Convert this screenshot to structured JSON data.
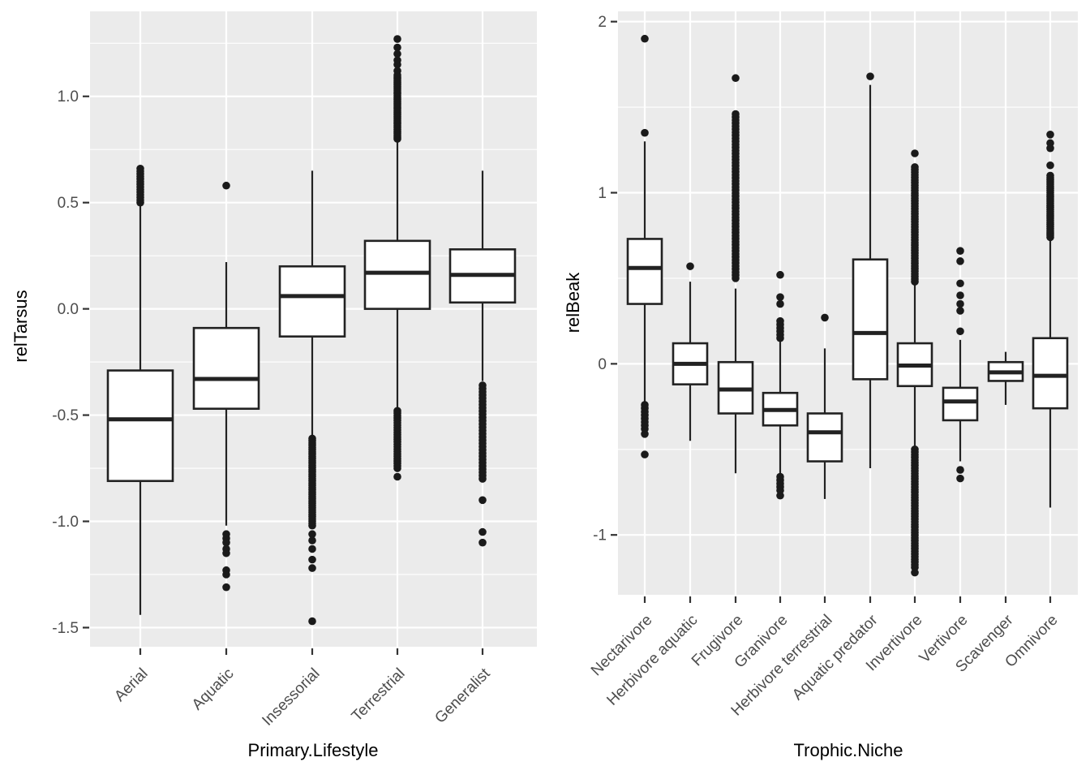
{
  "figure": {
    "background": "#FFFFFF",
    "panel_background": "#EBEBEB",
    "grid_color": "#FFFFFF",
    "box_fill": "#FFFFFF",
    "box_stroke": "#222222",
    "outlier_color": "#1A1A1A",
    "tick_label_color": "#4D4D4D",
    "tick_mark_color": "#333333",
    "axis_title_color": "#000000"
  },
  "chart_data": [
    {
      "type": "boxplot",
      "title": "",
      "xlabel": "Primary.Lifestyle",
      "ylabel": "relTarsus",
      "ylim": [
        -1.59,
        1.4
      ],
      "yticks": [
        -1.5,
        -1.0,
        -0.5,
        0.0,
        0.5,
        1.0
      ],
      "ytick_labels": [
        "-1.5",
        "-1.0",
        "-0.5",
        "0.0",
        "0.5",
        "1.0"
      ],
      "grid": "major-and-minor",
      "legend": "none",
      "categories": [
        "Aerial",
        "Aquatic",
        "Insessorial",
        "Terrestrial",
        "Generalist"
      ],
      "boxes": [
        {
          "category": "Aerial",
          "whisker_low": -1.44,
          "q1": -0.81,
          "median": -0.52,
          "q3": -0.29,
          "whisker_high": 0.49,
          "outliers": [],
          "outlier_bands": [
            {
              "from": 0.5,
              "to": 0.66,
              "n": 14
            }
          ]
        },
        {
          "category": "Aquatic",
          "whisker_low": -1.02,
          "q1": -0.47,
          "median": -0.33,
          "q3": -0.09,
          "whisker_high": 0.22,
          "outliers": [
            0.58,
            -1.06,
            -1.08,
            -1.1,
            -1.13,
            -1.15,
            -1.23,
            -1.25,
            -1.31
          ],
          "outlier_bands": []
        },
        {
          "category": "Insessorial",
          "whisker_low": -0.6,
          "q1": -0.13,
          "median": 0.06,
          "q3": 0.2,
          "whisker_high": 0.65,
          "outliers": [
            -1.06,
            -1.09,
            -1.13,
            -1.18,
            -1.22,
            -1.47
          ],
          "outlier_bands": [
            {
              "from": -1.02,
              "to": -0.61,
              "n": 40
            }
          ]
        },
        {
          "category": "Terrestrial",
          "whisker_low": -0.47,
          "q1": 0.0,
          "median": 0.17,
          "q3": 0.32,
          "whisker_high": 0.79,
          "outliers": [
            1.12,
            1.15,
            1.17,
            1.2,
            1.23,
            1.27,
            -0.79
          ],
          "outlier_bands": [
            {
              "from": 0.8,
              "to": 1.1,
              "n": 35
            },
            {
              "from": -0.75,
              "to": -0.48,
              "n": 25
            }
          ]
        },
        {
          "category": "Generalist",
          "whisker_low": -0.34,
          "q1": 0.03,
          "median": 0.16,
          "q3": 0.28,
          "whisker_high": 0.65,
          "outliers": [
            -0.9,
            -1.05,
            -1.1
          ],
          "outlier_bands": [
            {
              "from": -0.8,
              "to": -0.36,
              "n": 30
            }
          ]
        }
      ]
    },
    {
      "type": "boxplot",
      "title": "",
      "xlabel": "Trophic.Niche",
      "ylabel": "relBeak",
      "ylim": [
        -1.35,
        2.06
      ],
      "yticks": [
        -1,
        0,
        1,
        2
      ],
      "ytick_labels": [
        "-1",
        "0",
        "1",
        "2"
      ],
      "grid": "major-and-minor",
      "legend": "none",
      "categories": [
        "Nectarivore",
        "Herbivore aquatic",
        "Frugivore",
        "Granivore",
        "Herbivore terrestrial",
        "Aquatic predator",
        "Invertivore",
        "Vertivore",
        "Scavenger",
        "Omnivore"
      ],
      "boxes": [
        {
          "category": "Nectarivore",
          "whisker_low": -0.22,
          "q1": 0.35,
          "median": 0.56,
          "q3": 0.73,
          "whisker_high": 1.3,
          "outliers": [
            1.9,
            1.35,
            -0.41,
            -0.53
          ],
          "outlier_bands": [
            {
              "from": -0.38,
              "to": -0.24,
              "n": 8
            }
          ]
        },
        {
          "category": "Herbivore aquatic",
          "whisker_low": -0.45,
          "q1": -0.12,
          "median": 0.0,
          "q3": 0.12,
          "whisker_high": 0.48,
          "outliers": [
            0.57
          ],
          "outlier_bands": []
        },
        {
          "category": "Frugivore",
          "whisker_low": -0.64,
          "q1": -0.29,
          "median": -0.15,
          "q3": 0.01,
          "whisker_high": 0.44,
          "outliers": [
            1.67
          ],
          "outlier_bands": [
            {
              "from": 0.5,
              "to": 1.46,
              "n": 55
            }
          ]
        },
        {
          "category": "Granivore",
          "whisker_low": -0.65,
          "q1": -0.36,
          "median": -0.27,
          "q3": -0.17,
          "whisker_high": 0.14,
          "outliers": [
            0.52,
            0.39,
            0.35,
            -0.77
          ],
          "outlier_bands": [
            {
              "from": 0.15,
              "to": 0.25,
              "n": 6
            },
            {
              "from": -0.74,
              "to": -0.66,
              "n": 5
            }
          ]
        },
        {
          "category": "Herbivore terrestrial",
          "whisker_low": -0.79,
          "q1": -0.57,
          "median": -0.4,
          "q3": -0.29,
          "whisker_high": 0.09,
          "outliers": [
            0.27
          ],
          "outlier_bands": []
        },
        {
          "category": "Aquatic predator",
          "whisker_low": -0.61,
          "q1": -0.09,
          "median": 0.18,
          "q3": 0.61,
          "whisker_high": 1.63,
          "outliers": [
            1.68
          ],
          "outlier_bands": []
        },
        {
          "category": "Invertivore",
          "whisker_low": -0.49,
          "q1": -0.13,
          "median": -0.01,
          "q3": 0.12,
          "whisker_high": 0.47,
          "outliers": [
            1.23,
            -1.22
          ],
          "outlier_bands": [
            {
              "from": 0.48,
              "to": 1.15,
              "n": 45
            },
            {
              "from": -1.19,
              "to": -0.5,
              "n": 45
            }
          ]
        },
        {
          "category": "Vertivore",
          "whisker_low": -0.57,
          "q1": -0.33,
          "median": -0.22,
          "q3": -0.14,
          "whisker_high": 0.14,
          "outliers": [
            0.66,
            0.6,
            0.47,
            0.4,
            0.35,
            0.31,
            0.19,
            -0.62,
            -0.67
          ],
          "outlier_bands": []
        },
        {
          "category": "Scavenger",
          "whisker_low": -0.24,
          "q1": -0.1,
          "median": -0.05,
          "q3": 0.01,
          "whisker_high": 0.07,
          "outliers": [],
          "outlier_bands": []
        },
        {
          "category": "Omnivore",
          "whisker_low": -0.84,
          "q1": -0.26,
          "median": -0.07,
          "q3": 0.15,
          "whisker_high": 0.72,
          "outliers": [
            1.34,
            1.29,
            1.26,
            1.16
          ],
          "outlier_bands": [
            {
              "from": 0.74,
              "to": 1.1,
              "n": 30
            }
          ]
        }
      ]
    }
  ]
}
